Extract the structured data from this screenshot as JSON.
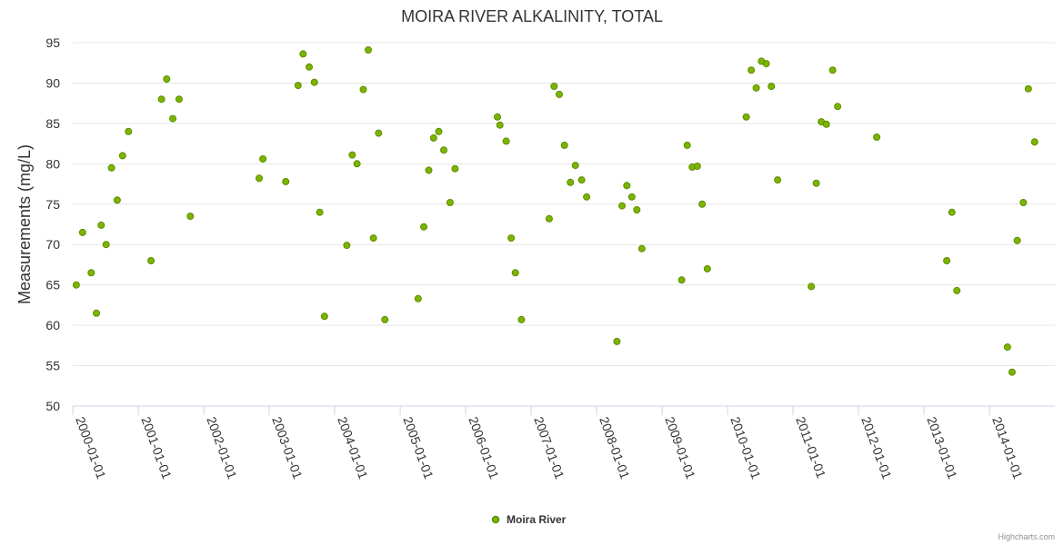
{
  "chart_data": {
    "type": "scatter",
    "title": "MOIRA RIVER ALKALINITY, TOTAL",
    "ylabel": "Measurements (mg/L)",
    "xlabel": "",
    "ylim": [
      50,
      95
    ],
    "yticks": [
      "50",
      "55",
      "60",
      "65",
      "70",
      "75",
      "80",
      "85",
      "90",
      "95"
    ],
    "xticks": [
      "2000-01-01",
      "2001-01-01",
      "2002-01-01",
      "2003-01-01",
      "2004-01-01",
      "2005-01-01",
      "2006-01-01",
      "2007-01-01",
      "2008-01-01",
      "2009-01-01",
      "2010-01-01",
      "2011-01-01",
      "2012-01-01",
      "2013-01-01",
      "2014-01-01"
    ],
    "grid": true,
    "legend_position": "bottom-center",
    "credits": "Highcharts.com",
    "series": [
      {
        "name": "Moira River",
        "color": "#7cb500",
        "points": [
          [
            "2000-01-21",
            65.0
          ],
          [
            "2000-02-25",
            71.5
          ],
          [
            "2000-04-13",
            66.5
          ],
          [
            "2000-05-12",
            61.5
          ],
          [
            "2000-06-08",
            72.4
          ],
          [
            "2000-07-05",
            70.0
          ],
          [
            "2000-08-04",
            79.5
          ],
          [
            "2000-09-05",
            75.5
          ],
          [
            "2000-10-05",
            81.0
          ],
          [
            "2000-11-07",
            84.0
          ],
          [
            "2001-03-13",
            68.0
          ],
          [
            "2001-05-10",
            88.0
          ],
          [
            "2001-06-08",
            90.5
          ],
          [
            "2001-07-12",
            85.6
          ],
          [
            "2001-08-16",
            88.0
          ],
          [
            "2001-10-18",
            73.5
          ],
          [
            "2002-11-06",
            78.2
          ],
          [
            "2002-11-27",
            80.6
          ],
          [
            "2003-04-03",
            77.8
          ],
          [
            "2003-06-11",
            89.7
          ],
          [
            "2003-07-09",
            93.6
          ],
          [
            "2003-08-12",
            92.0
          ],
          [
            "2003-09-10",
            90.1
          ],
          [
            "2003-10-10",
            74.0
          ],
          [
            "2003-11-05",
            61.1
          ],
          [
            "2004-03-09",
            69.9
          ],
          [
            "2004-04-08",
            81.1
          ],
          [
            "2004-05-05",
            80.0
          ],
          [
            "2004-06-09",
            89.2
          ],
          [
            "2004-07-07",
            94.1
          ],
          [
            "2004-08-04",
            70.8
          ],
          [
            "2004-09-02",
            83.8
          ],
          [
            "2004-10-07",
            60.7
          ],
          [
            "2005-04-11",
            63.3
          ],
          [
            "2005-05-12",
            72.2
          ],
          [
            "2005-06-09",
            79.2
          ],
          [
            "2005-07-06",
            83.2
          ],
          [
            "2005-08-04",
            84.0
          ],
          [
            "2005-09-01",
            81.7
          ],
          [
            "2005-10-06",
            75.2
          ],
          [
            "2005-11-03",
            79.4
          ],
          [
            "2006-06-27",
            85.8
          ],
          [
            "2006-07-11",
            84.8
          ],
          [
            "2006-08-15",
            82.8
          ],
          [
            "2006-09-12",
            70.8
          ],
          [
            "2006-10-05",
            66.5
          ],
          [
            "2006-11-08",
            60.7
          ],
          [
            "2007-04-12",
            73.2
          ],
          [
            "2007-05-09",
            89.6
          ],
          [
            "2007-06-07",
            88.6
          ],
          [
            "2007-07-06",
            82.3
          ],
          [
            "2007-08-08",
            77.7
          ],
          [
            "2007-09-05",
            79.8
          ],
          [
            "2007-10-10",
            78.0
          ],
          [
            "2007-11-07",
            75.9
          ],
          [
            "2008-04-24",
            58.0
          ],
          [
            "2008-05-22",
            74.8
          ],
          [
            "2008-06-18",
            77.3
          ],
          [
            "2008-07-16",
            75.9
          ],
          [
            "2008-08-13",
            74.3
          ],
          [
            "2008-09-10",
            69.5
          ],
          [
            "2009-04-20",
            65.6
          ],
          [
            "2009-05-21",
            82.3
          ],
          [
            "2009-06-18",
            79.6
          ],
          [
            "2009-07-16",
            79.7
          ],
          [
            "2009-08-12",
            75.0
          ],
          [
            "2009-09-10",
            67.0
          ],
          [
            "2010-04-15",
            85.8
          ],
          [
            "2010-05-13",
            91.6
          ],
          [
            "2010-06-10",
            89.4
          ],
          [
            "2010-07-09",
            92.7
          ],
          [
            "2010-08-05",
            92.4
          ],
          [
            "2010-09-02",
            89.6
          ],
          [
            "2010-10-07",
            78.0
          ],
          [
            "2011-04-13",
            64.8
          ],
          [
            "2011-05-11",
            77.6
          ],
          [
            "2011-06-08",
            85.2
          ],
          [
            "2011-07-06",
            84.9
          ],
          [
            "2011-08-10",
            91.6
          ],
          [
            "2011-09-07",
            87.1
          ],
          [
            "2012-04-12",
            83.3
          ],
          [
            "2013-05-08",
            68.0
          ],
          [
            "2013-06-05",
            74.0
          ],
          [
            "2013-07-03",
            64.3
          ],
          [
            "2014-04-11",
            57.3
          ],
          [
            "2014-05-07",
            54.2
          ],
          [
            "2014-06-05",
            70.5
          ],
          [
            "2014-07-09",
            75.2
          ],
          [
            "2014-08-06",
            89.3
          ],
          [
            "2014-09-10",
            82.7
          ]
        ]
      }
    ]
  }
}
